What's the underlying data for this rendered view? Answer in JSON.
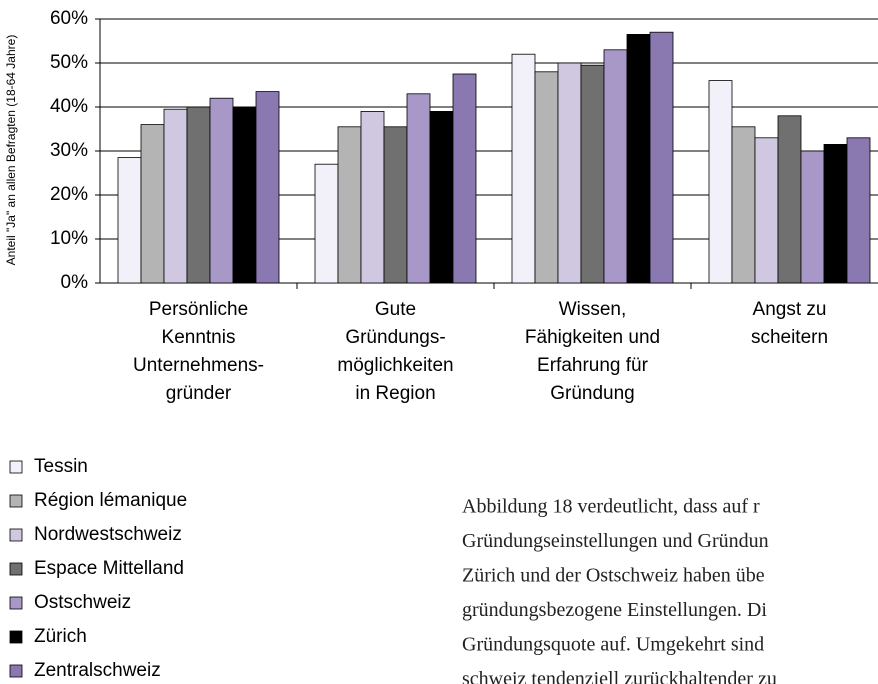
{
  "chart_data": {
    "type": "bar",
    "y_label": "Anteil \"Ja\" an allen Befragten (18-64 Jahre)",
    "categories": [
      "Persönliche\nKenntnis\nUnternehmens-\ngründer",
      "Gute\nGründungs-\nmöglichkeiten\nin Region",
      "Wissen,\nFähigkeiten und\nErfahrung für\nGründung",
      "Angst zu\nscheitern"
    ],
    "series": [
      {
        "name": "Tessin",
        "color": "#f2f0f8",
        "values": [
          28.5,
          27,
          52,
          46
        ]
      },
      {
        "name": "Région lémanique",
        "color": "#b4b4b4",
        "values": [
          36,
          35.5,
          48,
          35.5
        ]
      },
      {
        "name": "Nordwestschweiz",
        "color": "#d0c8e0",
        "values": [
          39.5,
          39,
          50,
          33
        ]
      },
      {
        "name": "Espace Mittelland",
        "color": "#707070",
        "values": [
          40,
          35.5,
          49.5,
          38
        ]
      },
      {
        "name": "Ostschweiz",
        "color": "#a898c8",
        "values": [
          42,
          43,
          53,
          30
        ]
      },
      {
        "name": "Zürich",
        "color": "#000000",
        "values": [
          40,
          39,
          56.5,
          31.5
        ]
      },
      {
        "name": "Zentralschweiz",
        "color": "#8a78b0",
        "values": [
          43.5,
          47.5,
          57,
          33
        ]
      }
    ],
    "ylim": [
      0,
      60
    ],
    "yticks": [
      {
        "value": 0,
        "label": "0%"
      },
      {
        "value": 10,
        "label": "10%"
      },
      {
        "value": 20,
        "label": "20%"
      },
      {
        "value": 30,
        "label": "30%"
      },
      {
        "value": 40,
        "label": "40%"
      },
      {
        "value": 50,
        "label": "50%"
      },
      {
        "value": 60,
        "label": "60%"
      }
    ],
    "grid": true,
    "legend": "bottom-left"
  },
  "paragraph": [
    "Abbildung 18 verdeutlicht, dass auf r",
    "Gründungseinstellungen und Gründun",
    "Zürich und der Ostschweiz haben übe",
    "gründungsbezogene Einstellungen. Di",
    "Gründungsquote auf. Umgekehrt sind",
    "schweiz tendenziell zurückhaltender zu"
  ]
}
